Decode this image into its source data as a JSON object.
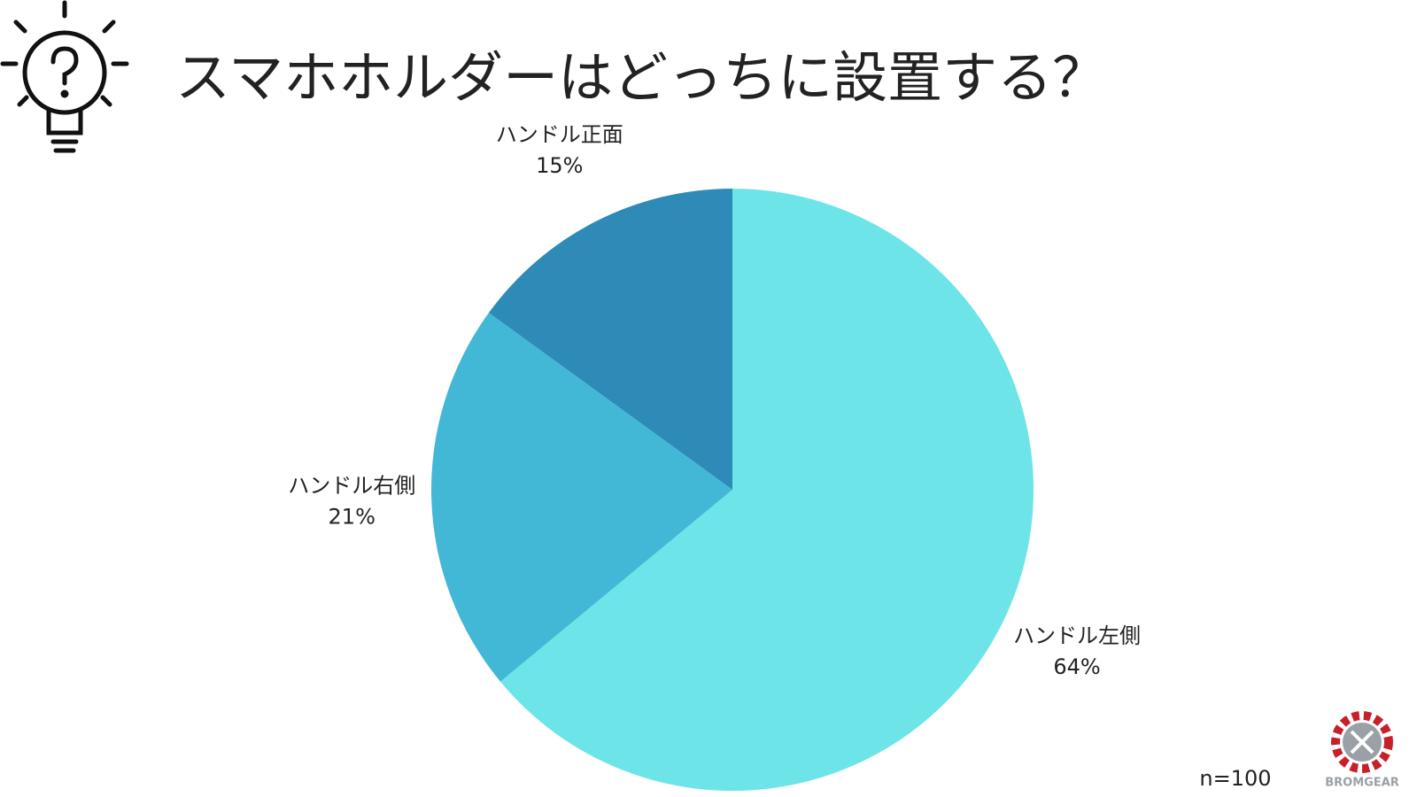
{
  "chart_data": {
    "type": "pie",
    "title": "スマホホルダーはどっちに設置する？",
    "categories": [
      "ハンドル左側",
      "ハンドル右側",
      "ハンドル正面"
    ],
    "values": [
      64,
      21,
      15
    ],
    "value_labels": [
      "64%",
      "21%",
      "15%"
    ],
    "colors": [
      "#6de4e8",
      "#43b8d6",
      "#2e8ab7"
    ],
    "annotation": "n=100",
    "logo_text": "BROMGEAR"
  }
}
